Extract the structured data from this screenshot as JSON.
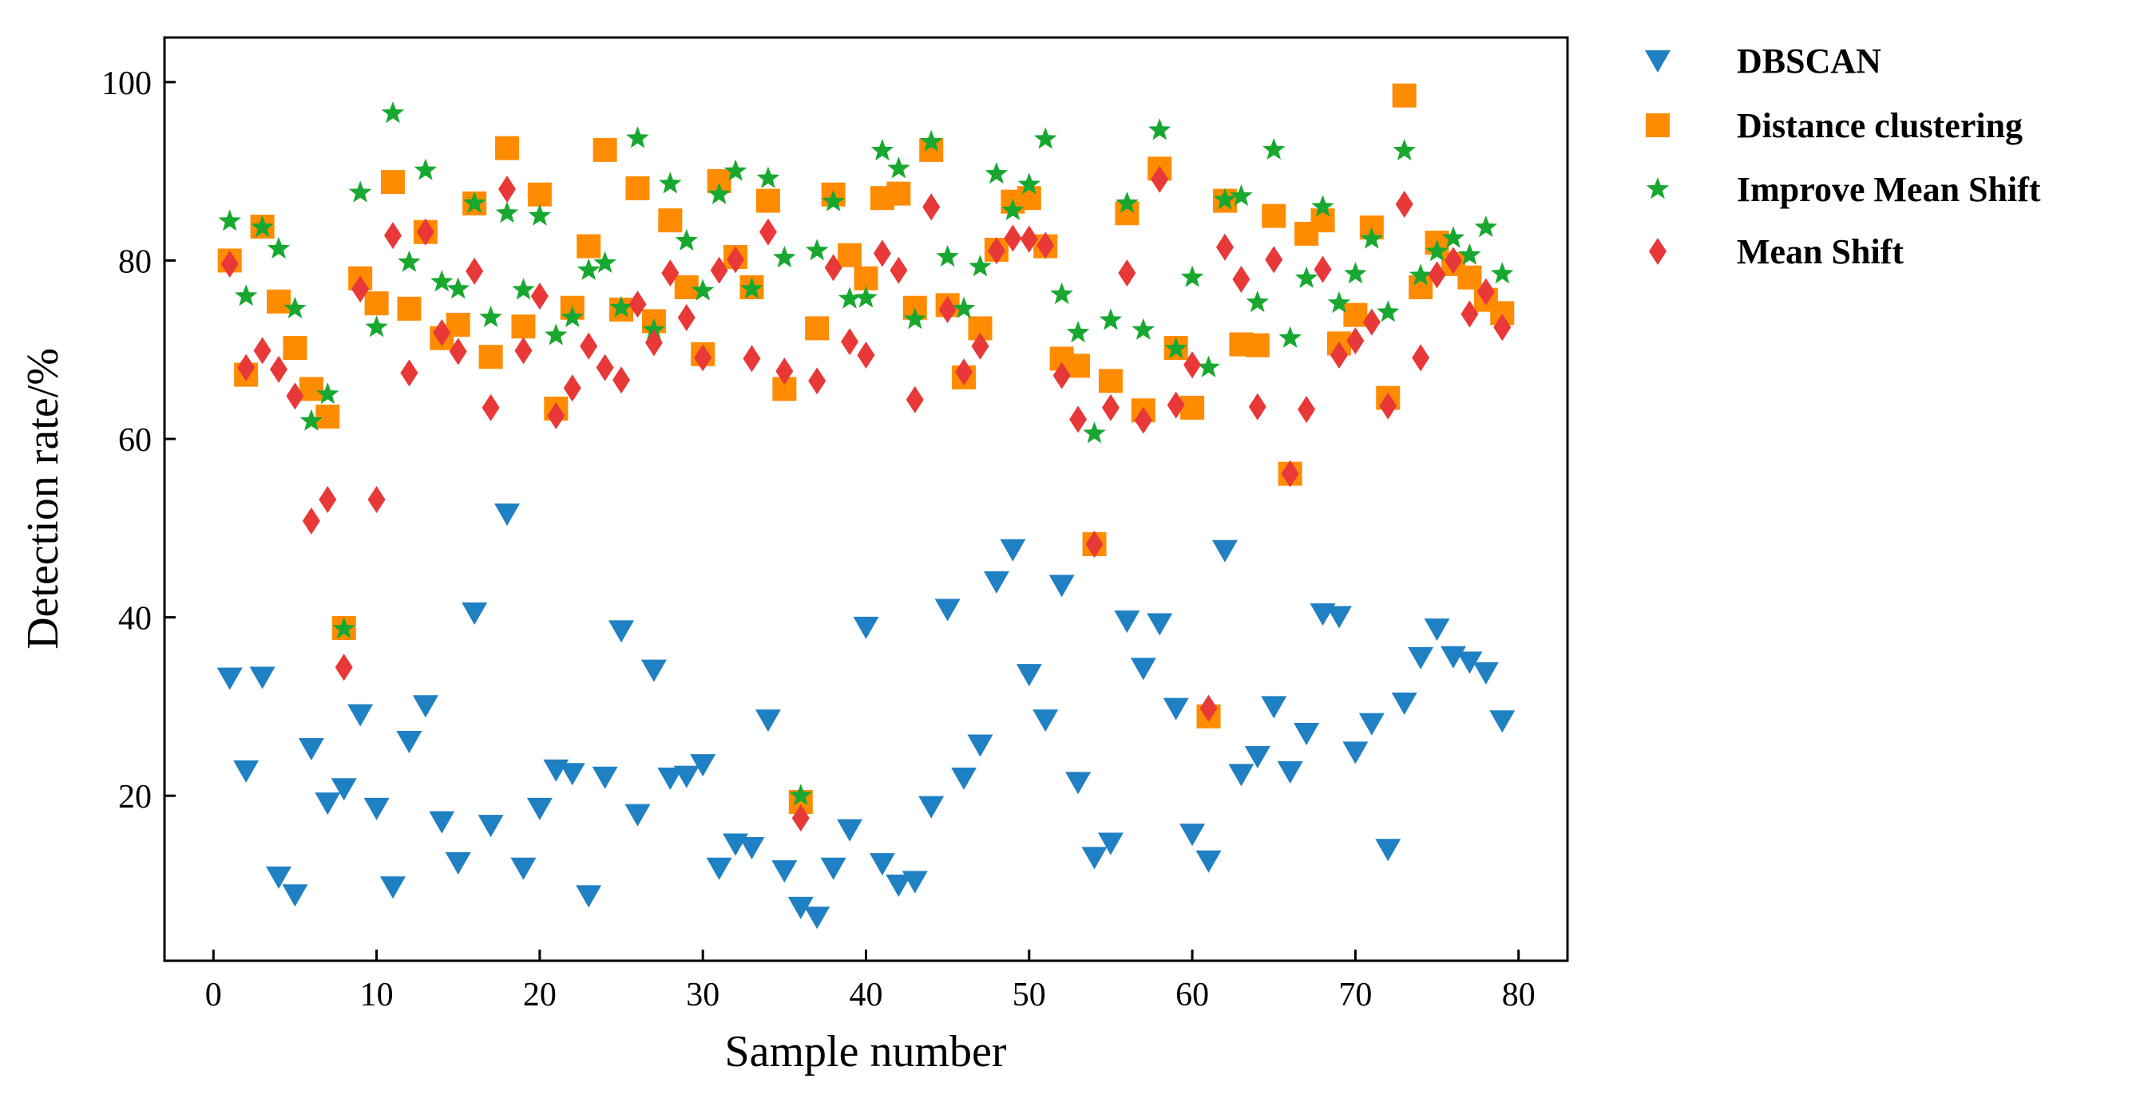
{
  "chart_data": {
    "type": "scatter",
    "title": "",
    "xlabel": "Sample number",
    "ylabel": "Detection rate/%",
    "xlim": [
      -3,
      83
    ],
    "ylim": [
      1.5,
      105
    ],
    "xticks": [
      0,
      10,
      20,
      30,
      40,
      50,
      60,
      70,
      80
    ],
    "yticks": [
      20,
      40,
      60,
      80,
      100
    ],
    "grid": false,
    "legend_position": "outside-right-top",
    "x": [
      1,
      2,
      3,
      4,
      5,
      6,
      7,
      8,
      9,
      10,
      11,
      12,
      13,
      14,
      15,
      16,
      17,
      18,
      19,
      20,
      21,
      22,
      23,
      24,
      25,
      26,
      27,
      28,
      29,
      30,
      31,
      32,
      33,
      34,
      35,
      36,
      37,
      38,
      39,
      40,
      41,
      42,
      43,
      44,
      45,
      46,
      47,
      48,
      49,
      50,
      51,
      52,
      53,
      54,
      55,
      56,
      57,
      58,
      59,
      60,
      61,
      62,
      63,
      64,
      65,
      66,
      67,
      68,
      69,
      70,
      71,
      72,
      73,
      74,
      75,
      76,
      77,
      78,
      79
    ],
    "series": [
      {
        "name": "DBSCAN",
        "color": "#1f80c3",
        "marker": "triangle-down",
        "values": [
          33.2,
          22.8,
          33.3,
          10.9,
          8.9,
          25.3,
          19.2,
          20.8,
          29.1,
          18.6,
          9.8,
          26.1,
          30.1,
          17.1,
          12.5,
          40.5,
          16.7,
          51.6,
          11.9,
          18.6,
          22.9,
          22.5,
          8.8,
          22.1,
          38.5,
          17.9,
          34.1,
          22,
          22.2,
          23.5,
          11.9,
          14.6,
          14.2,
          28.5,
          11.6,
          7.5,
          6.4,
          11.9,
          16.2,
          38.9,
          12.4,
          10,
          10.4,
          18.8,
          40.9,
          22,
          25.7,
          44,
          47.6,
          33.6,
          28.5,
          43.6,
          21.5,
          13.1,
          14.7,
          39.6,
          34.3,
          39.3,
          29.8,
          15.7,
          12.7,
          47.5,
          22.4,
          24.4,
          30,
          22.7,
          27,
          40.4,
          40.1,
          24.9,
          28.1,
          14,
          30.4,
          35.5,
          38.7,
          35.6,
          35,
          33.8,
          28.4
        ]
      },
      {
        "name": "Distance clustering",
        "color": "#ff8c00",
        "marker": "square",
        "values": [
          80,
          67.2,
          83.8,
          75.4,
          70.2,
          65.6,
          62.5,
          38.8,
          78,
          75.2,
          88.8,
          74.6,
          83.2,
          71.3,
          72.8,
          86.4,
          69.2,
          92.6,
          72.6,
          87.4,
          63.4,
          74.7,
          81.6,
          92.4,
          74.5,
          88.1,
          73.2,
          84.5,
          77,
          69.5,
          88.9,
          80.4,
          77,
          86.7,
          65.6,
          19.3,
          72.4,
          87.4,
          80.6,
          78,
          87,
          87.5,
          74.7,
          92.4,
          75,
          66.9,
          72.4,
          81.2,
          86.6,
          87,
          81.6,
          69,
          68.2,
          48.2,
          66.5,
          85.3,
          63.2,
          90.3,
          70.2,
          63.5,
          28.9,
          86.7,
          70.6,
          70.5,
          85,
          56.1,
          83,
          84.5,
          70.7,
          73.9,
          83.7,
          64.6,
          98.5,
          77,
          82,
          79.6,
          78.1,
          75.6,
          74.1
        ]
      },
      {
        "name": "Improve Mean Shift",
        "color": "#18a830",
        "marker": "star",
        "values": [
          84.4,
          76,
          83.7,
          81.3,
          74.6,
          62,
          65,
          38.7,
          87.6,
          72.5,
          96.5,
          79.8,
          90.1,
          77.6,
          76.8,
          86.4,
          73.6,
          85.3,
          76.7,
          85,
          71.6,
          73.6,
          78.9,
          79.7,
          74.7,
          93.7,
          72.2,
          88.6,
          82.2,
          76.6,
          87.4,
          90,
          76.8,
          89.2,
          80.3,
          20,
          81.1,
          86.6,
          75.7,
          75.8,
          92.3,
          90.3,
          73.4,
          93.3,
          80.4,
          74.6,
          79.3,
          89.7,
          85.6,
          88.5,
          93.6,
          76.2,
          71.9,
          60.6,
          73.3,
          86.4,
          72.2,
          94.6,
          70.1,
          78.1,
          68,
          86.8,
          87.2,
          75.3,
          92.4,
          71.3,
          78,
          86,
          75.2,
          78.5,
          82.4,
          74.2,
          92.3,
          78.3,
          81,
          82.5,
          80.6,
          83.7,
          78.5
        ]
      },
      {
        "name": "Mean Shift",
        "color": "#e83838",
        "marker": "diamond",
        "values": [
          79.6,
          68,
          69.9,
          67.8,
          64.8,
          50.8,
          53.2,
          34.4,
          76.8,
          53.2,
          82.8,
          67.4,
          83.2,
          71.9,
          69.8,
          78.8,
          63.5,
          88,
          69.9,
          76,
          62.6,
          65.7,
          70.4,
          68,
          66.6,
          75.1,
          70.8,
          78.6,
          73.6,
          69.1,
          78.9,
          80.1,
          69,
          83.2,
          67.6,
          17.5,
          66.5,
          79.2,
          70.9,
          69.4,
          80.8,
          78.9,
          64.4,
          86,
          74.5,
          67.5,
          70.4,
          81.1,
          82.5,
          82.4,
          81.7,
          67.1,
          62.2,
          48.2,
          63.5,
          78.6,
          62.1,
          89.1,
          63.8,
          68.3,
          29.8,
          81.5,
          77.9,
          63.6,
          80.1,
          56.1,
          63.3,
          79,
          69.4,
          71,
          73.1,
          63.7,
          86.3,
          69.1,
          78.4,
          80,
          74,
          76.5,
          72.5
        ]
      }
    ]
  }
}
